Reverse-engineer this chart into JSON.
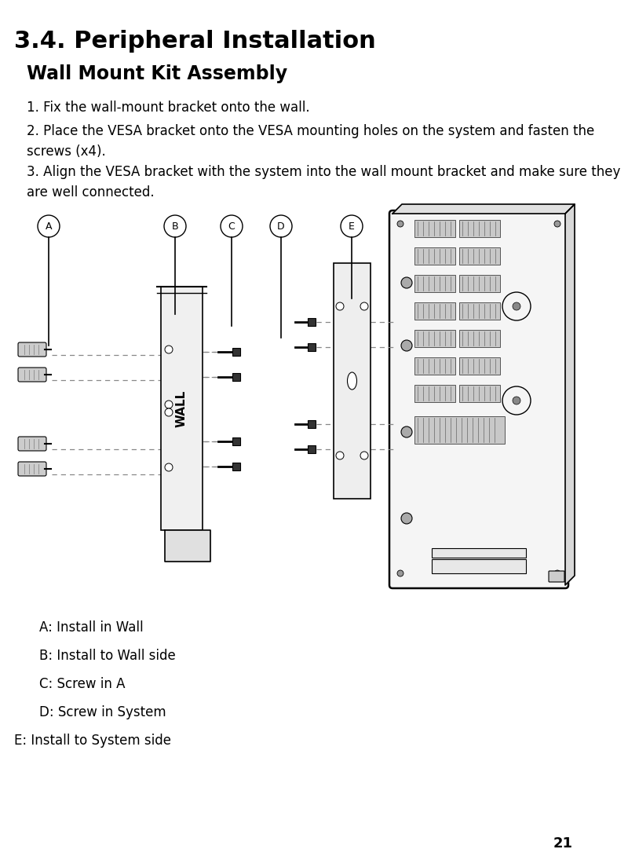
{
  "title": "3.4. Peripheral Installation",
  "subtitle": "Wall Mount Kit Assembly",
  "step1": "1. Fix the wall-mount bracket onto the wall.",
  "step2a": "2. Place the VESA bracket onto the VESA mounting holes on the system and fasten the",
  "step2b": "screws (x4).",
  "step3a": "3. Align the VESA bracket with the system into the wall mount bracket and make sure they",
  "step3b": "are well connected.",
  "legend": [
    "A: Install in Wall",
    "B: Install to Wall side",
    "C: Screw in A",
    "D: Screw in System",
    "E: Install to System side"
  ],
  "legend_indent": [
    true,
    true,
    true,
    true,
    false
  ],
  "page_number": "21",
  "bg_color": "#ffffff",
  "text_color": "#000000",
  "label_letters": [
    "A",
    "B",
    "C",
    "D",
    "E"
  ],
  "title_fontsize": 22,
  "subtitle_fontsize": 17,
  "body_fontsize": 12,
  "legend_fontsize": 12
}
